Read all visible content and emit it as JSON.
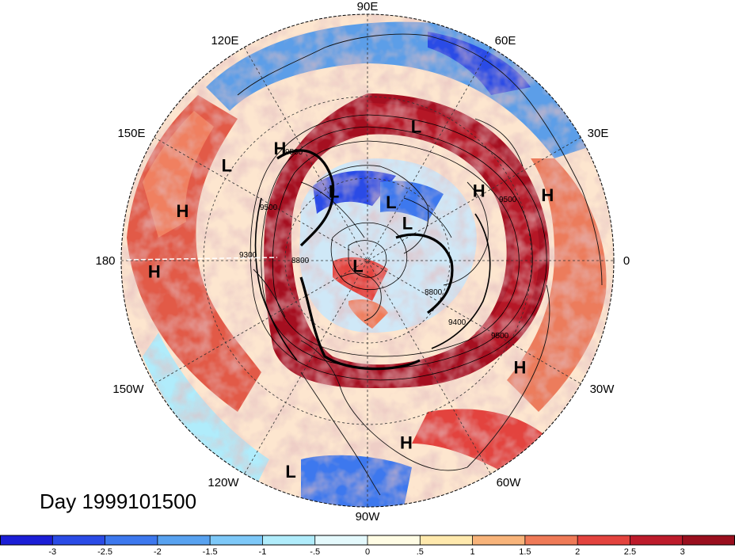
{
  "title": "Day 1999101500",
  "longitude_labels": [
    "90E",
    "60E",
    "30E",
    "0",
    "30W",
    "60W",
    "90W",
    "120W",
    "150W",
    "180",
    "150E",
    "120E"
  ],
  "contour_labels": [
    "9500",
    "9500",
    "9500",
    "9300",
    "8800",
    "9400",
    "9500",
    "8800"
  ],
  "pressure_centers": [
    {
      "type": "L",
      "lon": 70,
      "lat": 38
    },
    {
      "type": "H",
      "lon": 32,
      "lat": 42
    },
    {
      "type": "H",
      "lon": 20,
      "lat": 20
    },
    {
      "type": "H",
      "lon": 128,
      "lat": 38
    },
    {
      "type": "L",
      "lon": 146,
      "lat": 28
    },
    {
      "type": "H",
      "lon": 165,
      "lat": 20
    },
    {
      "type": "H",
      "lon": 183,
      "lat": 12
    },
    {
      "type": "L",
      "lon": 116,
      "lat": 62
    },
    {
      "type": "L",
      "lon": 68,
      "lat": 67
    },
    {
      "type": "L",
      "lon": 43,
      "lat": 70
    },
    {
      "type": "L",
      "lon": -150,
      "lat": 86
    },
    {
      "type": "H",
      "lon": -35,
      "lat": 22
    },
    {
      "type": "H",
      "lon": -78,
      "lat": 22
    },
    {
      "type": "L",
      "lon": -110,
      "lat": 8
    }
  ],
  "colorbar": {
    "colors": [
      "#1b1ed6",
      "#2a4be6",
      "#3d78ee",
      "#58a2f0",
      "#7dc8f8",
      "#b0ecfb",
      "#e4f9fc",
      "#fffce4",
      "#ffe9ad",
      "#f8b47a",
      "#ef7a57",
      "#e3433e",
      "#bd1b2b",
      "#9a0f1e"
    ],
    "ticks": [
      "-3",
      "-2.5",
      "-2",
      "-1.5",
      "-1",
      "-.5",
      "0",
      ".5",
      "1",
      "1.5",
      "2",
      "2.5",
      "3"
    ]
  }
}
